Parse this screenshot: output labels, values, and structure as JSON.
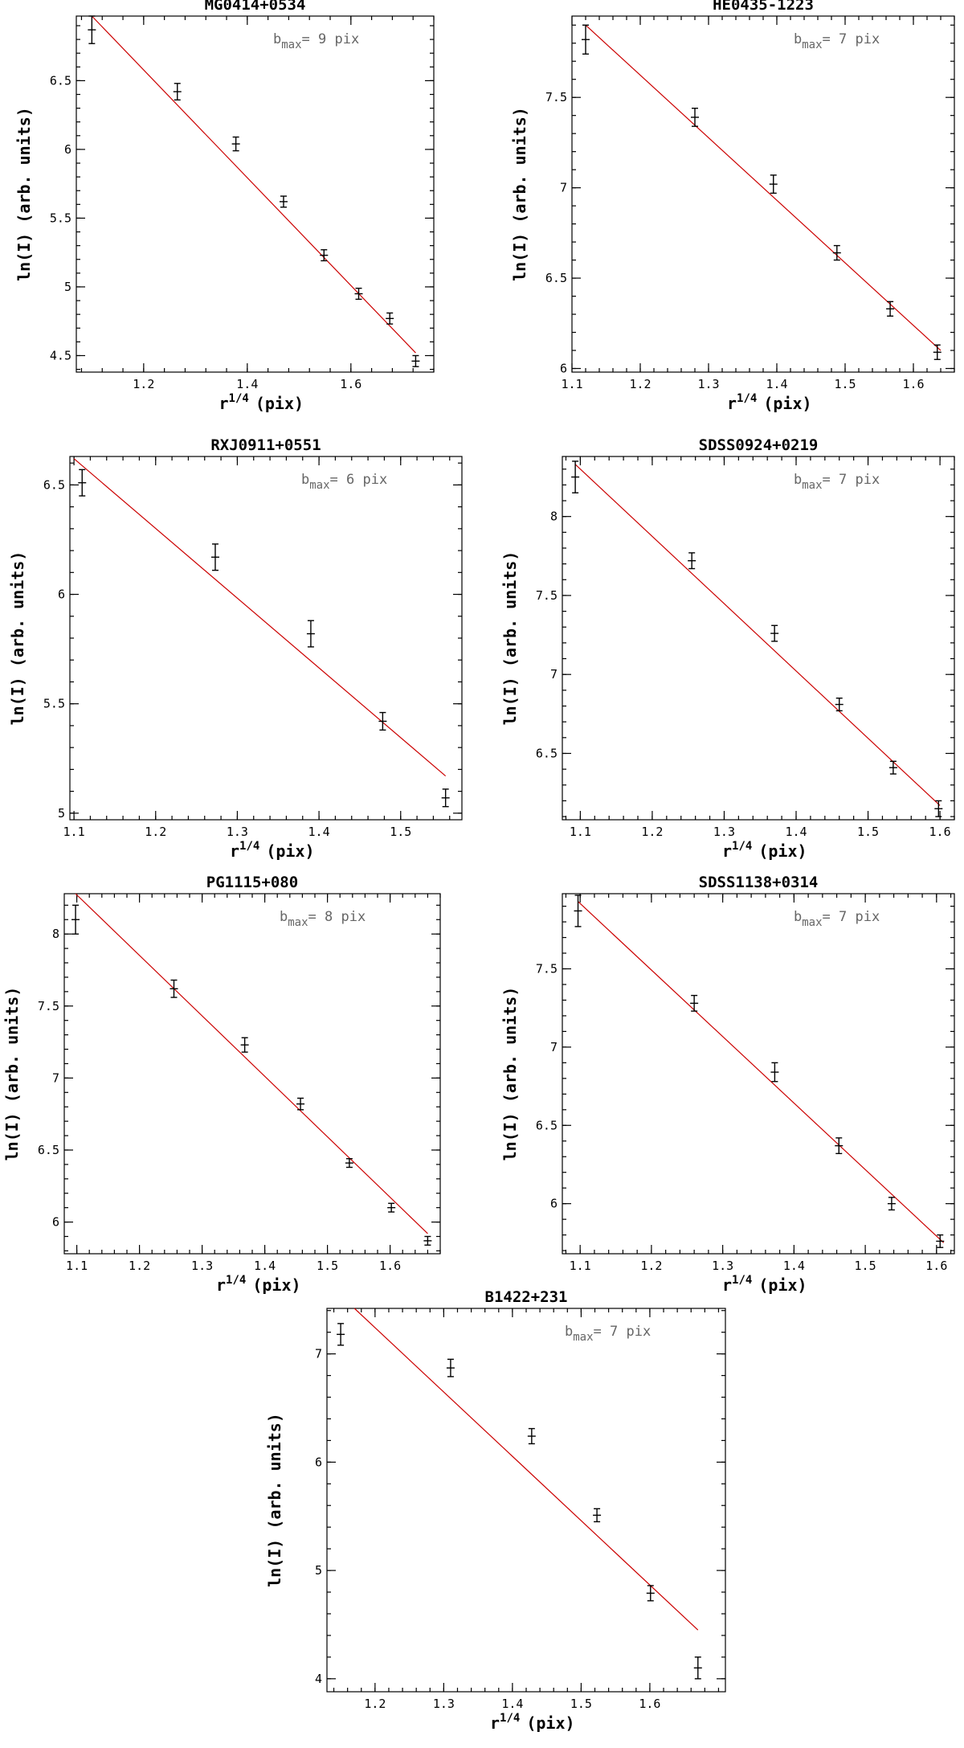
{
  "chart_data": [
    {
      "type": "scatter",
      "title": "MG0414+0534",
      "xlabel": "r",
      "xlabel_exp": "1/4",
      "xlabel_unit": "(pix)",
      "ylabel": "ln(I)  (arb. units)",
      "annotation_prefix": "b",
      "annotation_sub": "max",
      "annotation_value": "= 9 pix",
      "xlim": [
        1.07,
        1.76
      ],
      "ylim": [
        4.38,
        6.97
      ],
      "xticks": [
        1.2,
        1.4,
        1.6
      ],
      "xtick_labels": [
        "1.2",
        "1.4",
        "1.6"
      ],
      "yticks": [
        4.5,
        5,
        5.5,
        6,
        6.5
      ],
      "ytick_labels": [
        "4.5",
        "5",
        "5.5",
        "6",
        "6.5"
      ],
      "x": [
        1.1,
        1.265,
        1.378,
        1.47,
        1.548,
        1.615,
        1.675,
        1.725
      ],
      "y": [
        6.87,
        6.42,
        6.04,
        5.62,
        5.23,
        4.95,
        4.77,
        4.46
      ],
      "yerr": [
        0.1,
        0.06,
        0.05,
        0.04,
        0.04,
        0.04,
        0.04,
        0.04
      ],
      "fit": {
        "x": [
          1.1,
          1.725
        ],
        "y": [
          6.97,
          4.52
        ]
      },
      "data_labels": []
    },
    {
      "type": "scatter",
      "title": "HE0435-1223",
      "xlabel": "r",
      "xlabel_exp": "1/4",
      "xlabel_unit": "(pix)",
      "ylabel": "ln(I)  (arb. units)",
      "annotation_prefix": "b",
      "annotation_sub": "max",
      "annotation_value": "= 7 pix",
      "xlim": [
        1.1,
        1.66
      ],
      "ylim": [
        5.98,
        7.95
      ],
      "xticks": [
        1.1,
        1.2,
        1.3,
        1.4,
        1.5,
        1.6
      ],
      "xtick_labels": [
        "1.1",
        "1.2",
        "1.3",
        "1.4",
        "1.5",
        "1.6"
      ],
      "yticks": [
        6,
        6.5,
        7,
        7.5
      ],
      "ytick_labels": [
        "6",
        "6.5",
        "7",
        "7.5"
      ],
      "x": [
        1.12,
        1.28,
        1.395,
        1.488,
        1.566,
        1.635
      ],
      "y": [
        7.82,
        7.39,
        7.02,
        6.64,
        6.33,
        6.09
      ],
      "yerr": [
        0.08,
        0.05,
        0.05,
        0.04,
        0.04,
        0.04
      ],
      "fit": {
        "x": [
          1.12,
          1.64
        ],
        "y": [
          7.9,
          6.1
        ]
      },
      "data_labels": []
    },
    {
      "type": "scatter",
      "title": "RXJ0911+0551",
      "xlabel": "r",
      "xlabel_exp": "1/4",
      "xlabel_unit": "(pix)",
      "ylabel": "ln(I)  (arb. units)",
      "annotation_prefix": "b",
      "annotation_sub": "max",
      "annotation_value": "= 6 pix",
      "xlim": [
        1.095,
        1.575
      ],
      "ylim": [
        4.97,
        6.63
      ],
      "xticks": [
        1.1,
        1.2,
        1.3,
        1.4,
        1.5
      ],
      "xtick_labels": [
        "1.1",
        "1.2",
        "1.3",
        "1.4",
        "1.5"
      ],
      "yticks": [
        5,
        5.5,
        6,
        6.5
      ],
      "ytick_labels": [
        "5",
        "5.5",
        "6",
        "6.5"
      ],
      "x": [
        1.11,
        1.273,
        1.39,
        1.478,
        1.555
      ],
      "y": [
        6.51,
        6.17,
        5.82,
        5.42,
        5.07
      ],
      "yerr": [
        0.06,
        0.06,
        0.06,
        0.04,
        0.04
      ],
      "fit": {
        "x": [
          1.1,
          1.555
        ],
        "y": [
          6.62,
          5.17
        ]
      },
      "data_labels": []
    },
    {
      "type": "scatter",
      "title": "SDSS0924+0219",
      "xlabel": "r",
      "xlabel_exp": "1/4",
      "xlabel_unit": "(pix)",
      "ylabel": "ln(I)  (arb. units)",
      "annotation_prefix": "b",
      "annotation_sub": "max",
      "annotation_value": "= 7 pix",
      "xlim": [
        1.075,
        1.62
      ],
      "ylim": [
        6.08,
        8.38
      ],
      "xticks": [
        1.1,
        1.2,
        1.3,
        1.4,
        1.5,
        1.6
      ],
      "xtick_labels": [
        "1.1",
        "1.2",
        "1.3",
        "1.4",
        "1.5",
        "1.6"
      ],
      "yticks": [
        6.5,
        7,
        7.5,
        8
      ],
      "ytick_labels": [
        "6.5",
        "7",
        "7.5",
        "8"
      ],
      "x": [
        1.093,
        1.255,
        1.37,
        1.46,
        1.535,
        1.598
      ],
      "y": [
        8.25,
        7.72,
        7.26,
        6.81,
        6.41,
        6.15
      ],
      "yerr": [
        0.1,
        0.05,
        0.05,
        0.04,
        0.04,
        0.05
      ],
      "fit": {
        "x": [
          1.093,
          1.6
        ],
        "y": [
          8.33,
          6.17
        ]
      },
      "data_labels": []
    },
    {
      "type": "scatter",
      "title": "PG1115+080",
      "xlabel": "r",
      "xlabel_exp": "1/4",
      "xlabel_unit": "(pix)",
      "ylabel": "ln(I)  (arb. units)",
      "annotation_prefix": "b",
      "annotation_sub": "max",
      "annotation_value": "= 8 pix",
      "xlim": [
        1.08,
        1.68
      ],
      "ylim": [
        5.78,
        8.28
      ],
      "xticks": [
        1.1,
        1.2,
        1.3,
        1.4,
        1.5,
        1.6
      ],
      "xtick_labels": [
        "1.1",
        "1.2",
        "1.3",
        "1.4",
        "1.5",
        "1.6"
      ],
      "yticks": [
        6,
        6.5,
        7,
        7.5,
        8
      ],
      "ytick_labels": [
        "6",
        "6.5",
        "7",
        "7.5",
        "8"
      ],
      "x": [
        1.098,
        1.255,
        1.368,
        1.457,
        1.535,
        1.602,
        1.66
      ],
      "y": [
        8.1,
        7.62,
        7.23,
        6.82,
        6.41,
        6.1,
        5.87
      ],
      "yerr": [
        0.1,
        0.06,
        0.05,
        0.04,
        0.03,
        0.03,
        0.03
      ],
      "fit": {
        "x": [
          1.098,
          1.66
        ],
        "y": [
          8.28,
          5.92
        ]
      },
      "data_labels": []
    },
    {
      "type": "scatter",
      "title": "SDSS1138+0314",
      "xlabel": "r",
      "xlabel_exp": "1/4",
      "xlabel_unit": "(pix)",
      "ylabel": "ln(I)  (arb. units)",
      "annotation_prefix": "b",
      "annotation_sub": "max",
      "annotation_value": "= 7 pix",
      "xlim": [
        1.075,
        1.625
      ],
      "ylim": [
        5.68,
        7.98
      ],
      "xticks": [
        1.1,
        1.2,
        1.3,
        1.4,
        1.5,
        1.6
      ],
      "xtick_labels": [
        "1.1",
        "1.2",
        "1.3",
        "1.4",
        "1.5",
        "1.6"
      ],
      "yticks": [
        6,
        6.5,
        7,
        7.5
      ],
      "ytick_labels": [
        "6",
        "6.5",
        "7",
        "7.5"
      ],
      "x": [
        1.097,
        1.26,
        1.373,
        1.463,
        1.537,
        1.605
      ],
      "y": [
        7.87,
        7.28,
        6.84,
        6.37,
        6.0,
        5.76
      ],
      "yerr": [
        0.1,
        0.05,
        0.06,
        0.05,
        0.04,
        0.04
      ],
      "fit": {
        "x": [
          1.097,
          1.61
        ],
        "y": [
          7.93,
          5.75
        ]
      },
      "data_labels": []
    },
    {
      "type": "scatter",
      "title": "B1422+231",
      "xlabel": "r",
      "xlabel_exp": "1/4",
      "xlabel_unit": "(pix)",
      "ylabel": "ln(I)  (arb. units)",
      "annotation_prefix": "b",
      "annotation_sub": "max",
      "annotation_value": "= 7 pix",
      "xlim": [
        1.13,
        1.71
      ],
      "ylim": [
        3.88,
        7.42
      ],
      "xticks": [
        1.2,
        1.3,
        1.4,
        1.5,
        1.6
      ],
      "xtick_labels": [
        "1.2",
        "1.3",
        "1.4",
        "1.5",
        "1.6"
      ],
      "yticks": [
        4,
        5,
        6,
        7
      ],
      "ytick_labels": [
        "4",
        "5",
        "6",
        "7"
      ],
      "x": [
        1.15,
        1.31,
        1.428,
        1.523,
        1.601,
        1.67
      ],
      "y": [
        7.18,
        6.87,
        6.24,
        5.51,
        4.79,
        4.1
      ],
      "yerr": [
        0.1,
        0.08,
        0.07,
        0.06,
        0.07,
        0.1
      ],
      "fit": {
        "x": [
          1.17,
          1.67
        ],
        "y": [
          7.42,
          4.45
        ]
      },
      "data_labels": []
    }
  ]
}
